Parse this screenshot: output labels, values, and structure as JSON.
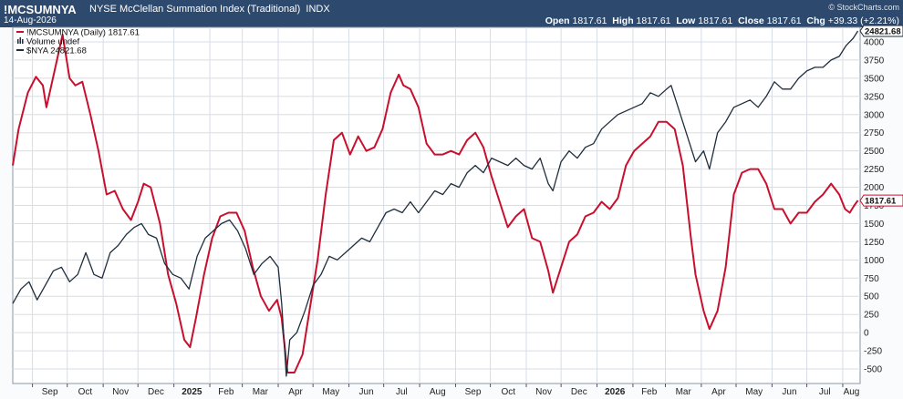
{
  "header": {
    "symbol": "!MCSUMNYA",
    "description": "NYSE McClellan Summation Index (Traditional)",
    "exchange": "INDX",
    "date": "14-Aug-2026",
    "open_label": "Open",
    "open": "1817.61",
    "high_label": "High",
    "high": "1817.61",
    "low_label": "Low",
    "low": "1817.61",
    "close_label": "Close",
    "close": "1817.61",
    "chg_label": "Chg",
    "chg": "+39.33 (+2.21%)",
    "watermark": "© StockCharts.com"
  },
  "legend": [
    {
      "text": "!MCSUMNYA (Daily) 1817.61",
      "color": "#c8102e",
      "marker": "line"
    },
    {
      "text": "Volume undef",
      "color": "#1f2d3d",
      "marker": "bars"
    },
    {
      "text": "$NYA 24821.68",
      "color": "#1f2d3d",
      "marker": "line"
    }
  ],
  "colors": {
    "header_bg": "#2d4a6e",
    "summation_line": "#c8102e",
    "nya_line": "#1f2d3d",
    "grid": "#d7dde6",
    "plot_bg": "#ffffff"
  },
  "chart_data": {
    "type": "line",
    "grid": true,
    "y_axis_side": "right",
    "ylim": [
      -700,
      4200
    ],
    "y_ticks": [
      "-500",
      "-250",
      "0",
      "250",
      "500",
      "750",
      "1000",
      "1250",
      "1500",
      "1750",
      "2000",
      "2250",
      "2500",
      "2750",
      "3000",
      "3250",
      "3500",
      "3750",
      "4000"
    ],
    "x_ticks": [
      "Sep",
      "Oct",
      "Nov",
      "Dec",
      "2025",
      "Feb",
      "Mar",
      "Apr",
      "May",
      "Jun",
      "Jul",
      "Aug",
      "Sep",
      "Oct",
      "Nov",
      "Dec",
      "2026",
      "Feb",
      "Mar",
      "Apr",
      "May",
      "Jun",
      "Jul",
      "Aug"
    ],
    "x_tick_bold": [
      "2025",
      "2026"
    ],
    "last_value_labels": {
      "nya": "24821.68",
      "summation": "1817.61"
    },
    "series": [
      {
        "name": "!MCSUMNYA (Daily)",
        "key": "summation",
        "points": [
          [
            "2024-08-15",
            2300
          ],
          [
            "2024-08-20",
            2800
          ],
          [
            "2024-08-28",
            3300
          ],
          [
            "2024-09-04",
            3520
          ],
          [
            "2024-09-10",
            3400
          ],
          [
            "2024-09-13",
            3100
          ],
          [
            "2024-09-20",
            3600
          ],
          [
            "2024-09-27",
            4100
          ],
          [
            "2024-10-03",
            3500
          ],
          [
            "2024-10-08",
            3400
          ],
          [
            "2024-10-14",
            3450
          ],
          [
            "2024-10-21",
            3000
          ],
          [
            "2024-10-28",
            2500
          ],
          [
            "2024-11-04",
            1900
          ],
          [
            "2024-11-11",
            1950
          ],
          [
            "2024-11-18",
            1700
          ],
          [
            "2024-11-25",
            1550
          ],
          [
            "2024-12-01",
            1800
          ],
          [
            "2024-12-06",
            2050
          ],
          [
            "2024-12-12",
            2000
          ],
          [
            "2024-12-20",
            1500
          ],
          [
            "2024-12-27",
            800
          ],
          [
            "2025-01-03",
            400
          ],
          [
            "2025-01-10",
            -100
          ],
          [
            "2025-01-15",
            -200
          ],
          [
            "2025-01-20",
            200
          ],
          [
            "2025-01-27",
            800
          ],
          [
            "2025-02-03",
            1300
          ],
          [
            "2025-02-10",
            1600
          ],
          [
            "2025-02-17",
            1650
          ],
          [
            "2025-02-24",
            1650
          ],
          [
            "2025-03-03",
            1400
          ],
          [
            "2025-03-10",
            900
          ],
          [
            "2025-03-17",
            500
          ],
          [
            "2025-03-24",
            300
          ],
          [
            "2025-03-31",
            450
          ],
          [
            "2025-04-04",
            200
          ],
          [
            "2025-04-09",
            -550
          ],
          [
            "2025-04-15",
            -550
          ],
          [
            "2025-04-22",
            -300
          ],
          [
            "2025-04-28",
            300
          ],
          [
            "2025-05-05",
            1000
          ],
          [
            "2025-05-12",
            1900
          ],
          [
            "2025-05-19",
            2650
          ],
          [
            "2025-05-26",
            2750
          ],
          [
            "2025-06-02",
            2450
          ],
          [
            "2025-06-09",
            2700
          ],
          [
            "2025-06-16",
            2500
          ],
          [
            "2025-06-23",
            2550
          ],
          [
            "2025-06-30",
            2800
          ],
          [
            "2025-07-07",
            3300
          ],
          [
            "2025-07-14",
            3550
          ],
          [
            "2025-07-18",
            3400
          ],
          [
            "2025-07-24",
            3350
          ],
          [
            "2025-07-31",
            3100
          ],
          [
            "2025-08-07",
            2600
          ],
          [
            "2025-08-14",
            2450
          ],
          [
            "2025-08-21",
            2450
          ],
          [
            "2025-08-28",
            2500
          ],
          [
            "2025-09-04",
            2450
          ],
          [
            "2025-09-11",
            2650
          ],
          [
            "2025-09-18",
            2750
          ],
          [
            "2025-09-25",
            2550
          ],
          [
            "2025-10-02",
            2150
          ],
          [
            "2025-10-09",
            1800
          ],
          [
            "2025-10-16",
            1450
          ],
          [
            "2025-10-23",
            1600
          ],
          [
            "2025-10-30",
            1700
          ],
          [
            "2025-11-06",
            1300
          ],
          [
            "2025-11-13",
            1250
          ],
          [
            "2025-11-20",
            850
          ],
          [
            "2025-11-24",
            550
          ],
          [
            "2025-12-01",
            900
          ],
          [
            "2025-12-08",
            1250
          ],
          [
            "2025-12-15",
            1350
          ],
          [
            "2025-12-22",
            1600
          ],
          [
            "2025-12-29",
            1650
          ],
          [
            "2026-01-05",
            1800
          ],
          [
            "2026-01-12",
            1700
          ],
          [
            "2026-01-19",
            1850
          ],
          [
            "2026-01-26",
            2300
          ],
          [
            "2026-02-02",
            2500
          ],
          [
            "2026-02-09",
            2600
          ],
          [
            "2026-02-16",
            2700
          ],
          [
            "2026-02-23",
            2900
          ],
          [
            "2026-03-02",
            2900
          ],
          [
            "2026-03-09",
            2800
          ],
          [
            "2026-03-16",
            2300
          ],
          [
            "2026-03-23",
            1300
          ],
          [
            "2026-03-27",
            800
          ],
          [
            "2026-04-03",
            300
          ],
          [
            "2026-04-08",
            50
          ],
          [
            "2026-04-15",
            300
          ],
          [
            "2026-04-22",
            900
          ],
          [
            "2026-04-29",
            1900
          ],
          [
            "2026-05-06",
            2200
          ],
          [
            "2026-05-13",
            2250
          ],
          [
            "2026-05-20",
            2250
          ],
          [
            "2026-05-27",
            2050
          ],
          [
            "2026-06-03",
            1700
          ],
          [
            "2026-06-10",
            1700
          ],
          [
            "2026-06-17",
            1500
          ],
          [
            "2026-06-24",
            1650
          ],
          [
            "2026-07-01",
            1650
          ],
          [
            "2026-07-08",
            1800
          ],
          [
            "2026-07-15",
            1900
          ],
          [
            "2026-07-22",
            2050
          ],
          [
            "2026-07-29",
            1900
          ],
          [
            "2026-08-03",
            1700
          ],
          [
            "2026-08-07",
            1650
          ],
          [
            "2026-08-11",
            1750
          ],
          [
            "2026-08-14",
            1817.61
          ]
        ]
      },
      {
        "name": "$NYA",
        "key": "nya",
        "points": [
          [
            "2024-08-15",
            400
          ],
          [
            "2024-08-22",
            600
          ],
          [
            "2024-08-29",
            700
          ],
          [
            "2024-09-05",
            450
          ],
          [
            "2024-09-12",
            650
          ],
          [
            "2024-09-19",
            850
          ],
          [
            "2024-09-26",
            900
          ],
          [
            "2024-10-03",
            700
          ],
          [
            "2024-10-10",
            800
          ],
          [
            "2024-10-17",
            1100
          ],
          [
            "2024-10-24",
            800
          ],
          [
            "2024-10-31",
            750
          ],
          [
            "2024-11-07",
            1100
          ],
          [
            "2024-11-14",
            1200
          ],
          [
            "2024-11-21",
            1350
          ],
          [
            "2024-11-28",
            1450
          ],
          [
            "2024-12-04",
            1500
          ],
          [
            "2024-12-10",
            1350
          ],
          [
            "2024-12-17",
            1300
          ],
          [
            "2024-12-24",
            950
          ],
          [
            "2024-12-31",
            800
          ],
          [
            "2025-01-07",
            750
          ],
          [
            "2025-01-14",
            600
          ],
          [
            "2025-01-21",
            1050
          ],
          [
            "2025-01-28",
            1300
          ],
          [
            "2025-02-04",
            1400
          ],
          [
            "2025-02-11",
            1500
          ],
          [
            "2025-02-18",
            1550
          ],
          [
            "2025-02-25",
            1400
          ],
          [
            "2025-03-04",
            1150
          ],
          [
            "2025-03-11",
            800
          ],
          [
            "2025-03-18",
            950
          ],
          [
            "2025-03-25",
            1050
          ],
          [
            "2025-04-01",
            900
          ],
          [
            "2025-04-04",
            400
          ],
          [
            "2025-04-08",
            -600
          ],
          [
            "2025-04-11",
            -100
          ],
          [
            "2025-04-17",
            0
          ],
          [
            "2025-04-24",
            300
          ],
          [
            "2025-05-01",
            650
          ],
          [
            "2025-05-08",
            800
          ],
          [
            "2025-05-15",
            1050
          ],
          [
            "2025-05-22",
            1000
          ],
          [
            "2025-05-29",
            1100
          ],
          [
            "2025-06-05",
            1200
          ],
          [
            "2025-06-12",
            1300
          ],
          [
            "2025-06-19",
            1250
          ],
          [
            "2025-06-26",
            1450
          ],
          [
            "2025-07-03",
            1650
          ],
          [
            "2025-07-10",
            1700
          ],
          [
            "2025-07-17",
            1650
          ],
          [
            "2025-07-24",
            1800
          ],
          [
            "2025-07-31",
            1650
          ],
          [
            "2025-08-07",
            1800
          ],
          [
            "2025-08-14",
            1950
          ],
          [
            "2025-08-21",
            1900
          ],
          [
            "2025-08-28",
            2050
          ],
          [
            "2025-09-04",
            2000
          ],
          [
            "2025-09-11",
            2200
          ],
          [
            "2025-09-18",
            2300
          ],
          [
            "2025-09-25",
            2200
          ],
          [
            "2025-10-02",
            2400
          ],
          [
            "2025-10-09",
            2350
          ],
          [
            "2025-10-16",
            2300
          ],
          [
            "2025-10-23",
            2400
          ],
          [
            "2025-10-30",
            2300
          ],
          [
            "2025-11-06",
            2250
          ],
          [
            "2025-11-13",
            2400
          ],
          [
            "2025-11-20",
            2050
          ],
          [
            "2025-11-24",
            1950
          ],
          [
            "2025-12-01",
            2350
          ],
          [
            "2025-12-08",
            2500
          ],
          [
            "2025-12-15",
            2400
          ],
          [
            "2025-12-22",
            2550
          ],
          [
            "2025-12-29",
            2600
          ],
          [
            "2026-01-05",
            2800
          ],
          [
            "2026-01-12",
            2900
          ],
          [
            "2026-01-19",
            3000
          ],
          [
            "2026-01-26",
            3050
          ],
          [
            "2026-02-02",
            3100
          ],
          [
            "2026-02-09",
            3150
          ],
          [
            "2026-02-16",
            3300
          ],
          [
            "2026-02-23",
            3250
          ],
          [
            "2026-03-02",
            3350
          ],
          [
            "2026-03-06",
            3400
          ],
          [
            "2026-03-13",
            3050
          ],
          [
            "2026-03-20",
            2700
          ],
          [
            "2026-03-27",
            2350
          ],
          [
            "2026-04-03",
            2500
          ],
          [
            "2026-04-08",
            2250
          ],
          [
            "2026-04-15",
            2750
          ],
          [
            "2026-04-22",
            2900
          ],
          [
            "2026-04-29",
            3100
          ],
          [
            "2026-05-06",
            3150
          ],
          [
            "2026-05-13",
            3200
          ],
          [
            "2026-05-20",
            3100
          ],
          [
            "2026-05-27",
            3250
          ],
          [
            "2026-06-03",
            3450
          ],
          [
            "2026-06-10",
            3350
          ],
          [
            "2026-06-17",
            3350
          ],
          [
            "2026-06-24",
            3500
          ],
          [
            "2026-07-01",
            3600
          ],
          [
            "2026-07-08",
            3650
          ],
          [
            "2026-07-15",
            3650
          ],
          [
            "2026-07-22",
            3750
          ],
          [
            "2026-07-29",
            3800
          ],
          [
            "2026-08-04",
            3950
          ],
          [
            "2026-08-10",
            4050
          ],
          [
            "2026-08-14",
            4150
          ]
        ]
      }
    ]
  }
}
